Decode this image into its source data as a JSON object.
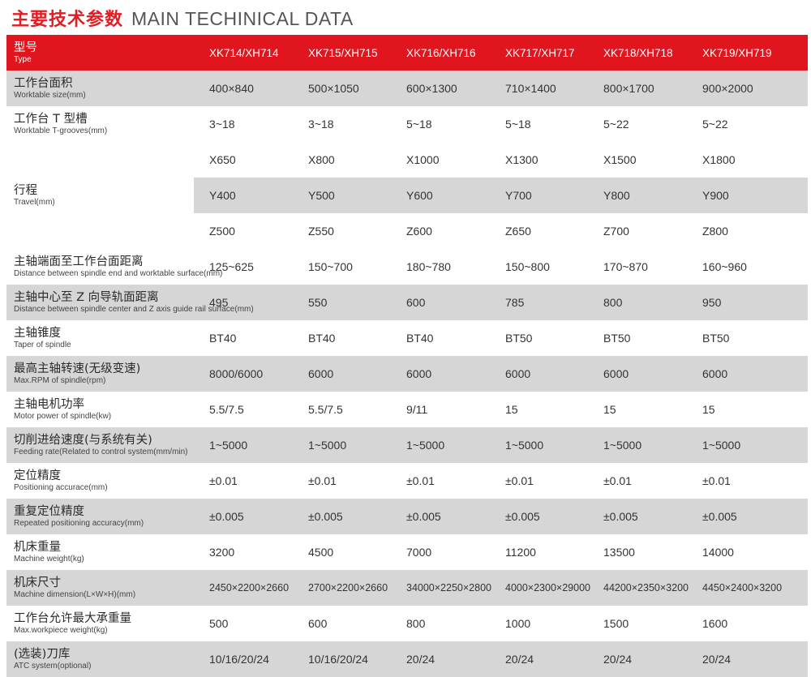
{
  "title": {
    "cn": "主要技术参数",
    "en": "MAIN TECHINICAL DATA"
  },
  "header": {
    "label_cn": "型号",
    "label_en": "Type",
    "models": [
      "XK714/XH714",
      "XK715/XH715",
      "XK716/XH716",
      "XK717/XH717",
      "XK718/XH718",
      "XK719/XH719"
    ]
  },
  "rows": [
    {
      "cn": "工作台面积",
      "en": "Worktable size(mm)",
      "values": [
        "400×840",
        "500×1050",
        "600×1300",
        "710×1400",
        "800×1700",
        "900×2000"
      ]
    },
    {
      "cn": "工作台 T 型槽",
      "en": "Worktable T-grooves(mm)",
      "values": [
        "3~18",
        "3~18",
        "5~18",
        "5~18",
        "5~22",
        "5~22"
      ]
    },
    {
      "cn": "行程",
      "en": "Travel(mm)",
      "sub": [
        [
          "X650",
          "X800",
          "X1000",
          "X1300",
          "X1500",
          "X1800"
        ],
        [
          "Y400",
          "Y500",
          "Y600",
          "Y700",
          "Y800",
          "Y900"
        ],
        [
          "Z500",
          "Z550",
          "Z600",
          "Z650",
          "Z700",
          "Z800"
        ]
      ]
    },
    {
      "cn": "主轴端面至工作台面距离",
      "en": "Distance between spindle end and worktable surface(mm)",
      "values": [
        "125~625",
        "150~700",
        "180~780",
        "150~800",
        "170~870",
        "160~960"
      ]
    },
    {
      "cn": "主轴中心至 Z 向导轨面距离",
      "en": "Distance between spindle center and Z axis guide rail surface(mm)",
      "values": [
        "495",
        "550",
        "600",
        "785",
        "800",
        "950"
      ]
    },
    {
      "cn": "主轴锥度",
      "en": "Taper of spindle",
      "values": [
        "BT40",
        "BT40",
        "BT40",
        "BT50",
        "BT50",
        "BT50"
      ]
    },
    {
      "cn": "最高主轴转速(无级变速)",
      "en": "Max.RPM of spindle(rpm)",
      "values": [
        "8000/6000",
        "6000",
        "6000",
        "6000",
        "6000",
        "6000"
      ]
    },
    {
      "cn": "主轴电机功率",
      "en": "Motor power of spindle(kw)",
      "values": [
        "5.5/7.5",
        "5.5/7.5",
        "9/11",
        "15",
        "15",
        "15"
      ]
    },
    {
      "cn": "切削进给速度(与系统有关)",
      "en": "Feeding rate(Related to control system(mm/min)",
      "values": [
        "1~5000",
        "1~5000",
        "1~5000",
        "1~5000",
        "1~5000",
        "1~5000"
      ]
    },
    {
      "cn": "定位精度",
      "en": "Positioning accurace(mm)",
      "values": [
        "±0.01",
        "±0.01",
        "±0.01",
        "±0.01",
        "±0.01",
        "±0.01"
      ]
    },
    {
      "cn": "重复定位精度",
      "en": "Repeated positioning accuracy(mm)",
      "values": [
        "±0.005",
        "±0.005",
        "±0.005",
        "±0.005",
        "±0.005",
        "±0.005"
      ]
    },
    {
      "cn": "机床重量",
      "en": "Machine weight(kg)",
      "values": [
        "3200",
        "4500",
        "7000",
        "11200",
        "13500",
        "14000"
      ]
    },
    {
      "cn": "机床尺寸",
      "en": "Machine dimension(L×W×H)(mm)",
      "values": [
        "2450×2200×2660",
        "2700×2200×2660",
        "34000×2250×2800",
        "4000×2300×29000",
        "44200×2350×3200",
        "4450×2400×3200"
      ]
    },
    {
      "cn": "工作台允许最大承重量",
      "en": "Max.workpiece weight(kg)",
      "values": [
        "500",
        "600",
        "800",
        "1000",
        "1500",
        "1600"
      ]
    },
    {
      "cn": "(选装)刀库",
      "en": "ATC system(optional)",
      "values": [
        "10/16/20/24",
        "10/16/20/24",
        "20/24",
        "20/24",
        "20/24",
        "20/24"
      ]
    }
  ],
  "colors": {
    "accent": "#e1151d",
    "stripe": "#d6d6d6"
  }
}
